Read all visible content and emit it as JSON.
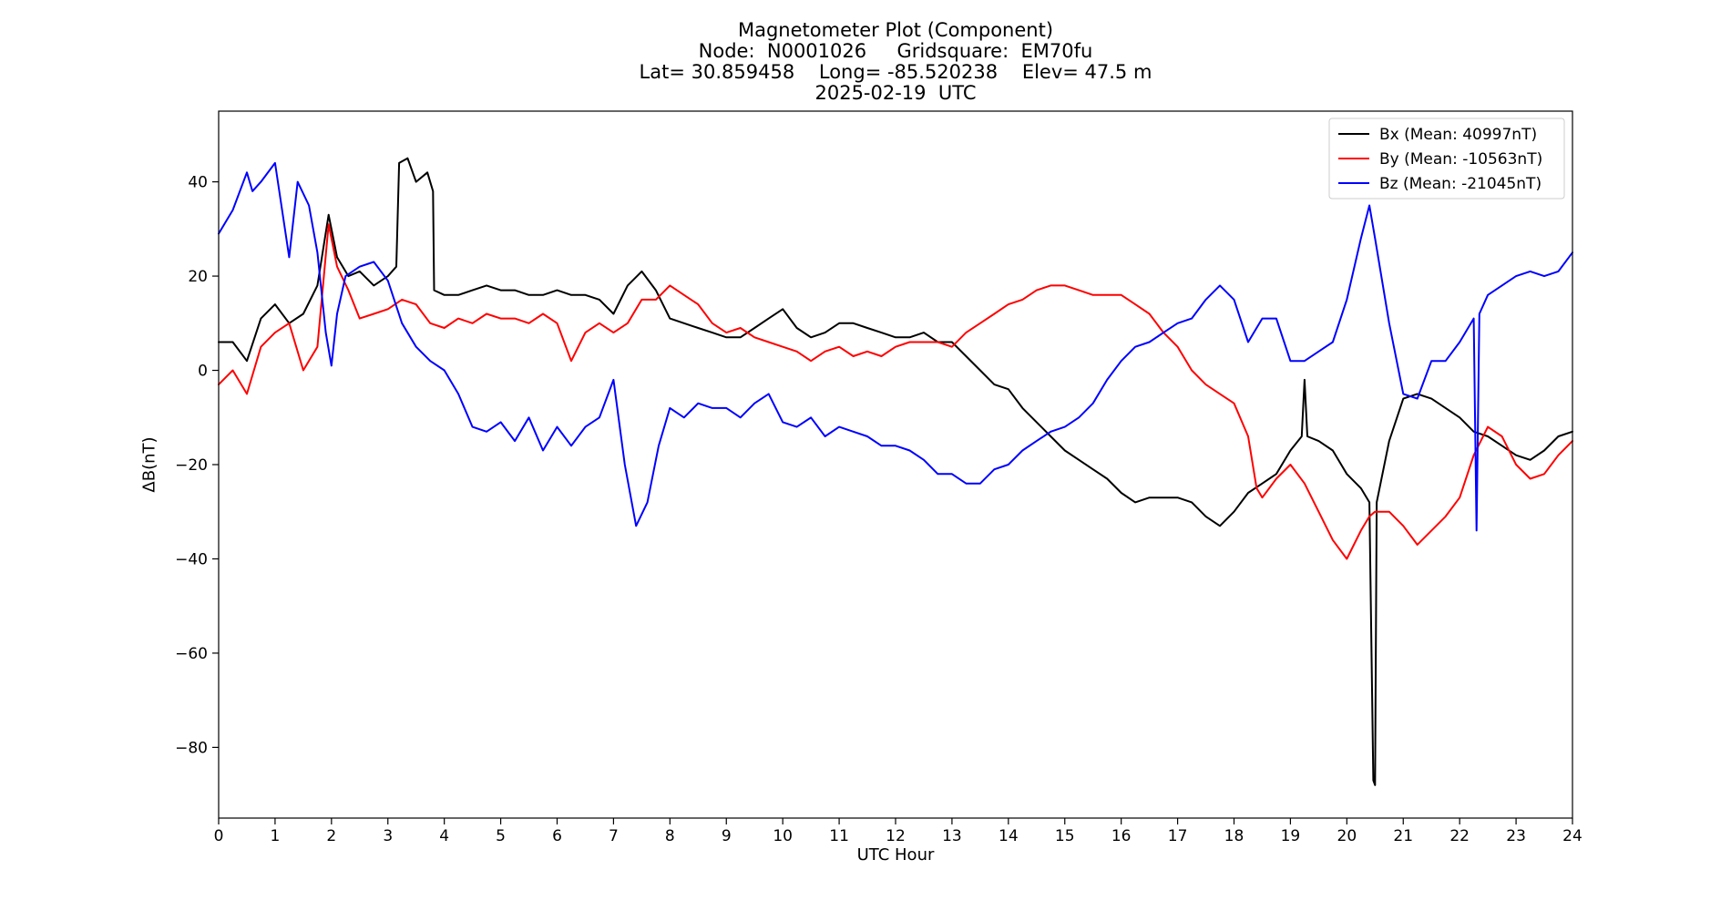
{
  "chart_data": {
    "type": "line",
    "title": [
      "Magnetometer Plot (Component)",
      "Node:  N0001026     Gridsquare:  EM70fu",
      "Lat= 30.859458    Long= -85.520238    Elev= 47.5 m",
      "2025-02-19  UTC"
    ],
    "xlabel": "UTC Hour",
    "ylabel": "ΔB(nT)",
    "xlim": [
      0,
      24
    ],
    "ylim": [
      -95,
      55
    ],
    "x_ticks": [
      0,
      1,
      2,
      3,
      4,
      5,
      6,
      7,
      8,
      9,
      10,
      11,
      12,
      13,
      14,
      15,
      16,
      17,
      18,
      19,
      20,
      21,
      22,
      23,
      24
    ],
    "y_ticks": [
      40,
      20,
      0,
      -20,
      -40,
      -60,
      -80
    ],
    "y_tick_labels": [
      "40",
      "20",
      "0",
      "−20",
      "−40",
      "−60",
      "−80"
    ],
    "grid": false,
    "legend_position": "top-right",
    "series": [
      {
        "name": "Bx (Mean: 40997nT)",
        "color": "#000000",
        "points": [
          [
            0,
            6
          ],
          [
            0.25,
            6
          ],
          [
            0.5,
            2
          ],
          [
            0.75,
            11
          ],
          [
            1,
            14
          ],
          [
            1.25,
            10
          ],
          [
            1.5,
            12
          ],
          [
            1.75,
            18
          ],
          [
            1.95,
            33
          ],
          [
            2.1,
            24
          ],
          [
            2.3,
            20
          ],
          [
            2.5,
            21
          ],
          [
            2.75,
            18
          ],
          [
            3,
            20
          ],
          [
            3.15,
            22
          ],
          [
            3.2,
            44
          ],
          [
            3.35,
            45
          ],
          [
            3.5,
            40
          ],
          [
            3.7,
            42
          ],
          [
            3.8,
            38
          ],
          [
            3.82,
            17
          ],
          [
            4,
            16
          ],
          [
            4.25,
            16
          ],
          [
            4.5,
            17
          ],
          [
            4.75,
            18
          ],
          [
            5,
            17
          ],
          [
            5.25,
            17
          ],
          [
            5.5,
            16
          ],
          [
            5.75,
            16
          ],
          [
            6,
            17
          ],
          [
            6.25,
            16
          ],
          [
            6.5,
            16
          ],
          [
            6.75,
            15
          ],
          [
            7,
            12
          ],
          [
            7.25,
            18
          ],
          [
            7.5,
            21
          ],
          [
            7.75,
            17
          ],
          [
            8,
            11
          ],
          [
            8.25,
            10
          ],
          [
            8.5,
            9
          ],
          [
            8.75,
            8
          ],
          [
            9,
            7
          ],
          [
            9.25,
            7
          ],
          [
            9.5,
            9
          ],
          [
            9.75,
            11
          ],
          [
            10,
            13
          ],
          [
            10.25,
            9
          ],
          [
            10.5,
            7
          ],
          [
            10.75,
            8
          ],
          [
            11,
            10
          ],
          [
            11.25,
            10
          ],
          [
            11.5,
            9
          ],
          [
            11.75,
            8
          ],
          [
            12,
            7
          ],
          [
            12.25,
            7
          ],
          [
            12.5,
            8
          ],
          [
            12.75,
            6
          ],
          [
            13,
            6
          ],
          [
            13.25,
            3
          ],
          [
            13.5,
            0
          ],
          [
            13.75,
            -3
          ],
          [
            14,
            -4
          ],
          [
            14.25,
            -8
          ],
          [
            14.5,
            -11
          ],
          [
            14.75,
            -14
          ],
          [
            15,
            -17
          ],
          [
            15.25,
            -19
          ],
          [
            15.5,
            -21
          ],
          [
            15.75,
            -23
          ],
          [
            16,
            -26
          ],
          [
            16.25,
            -28
          ],
          [
            16.5,
            -27
          ],
          [
            16.75,
            -27
          ],
          [
            17,
            -27
          ],
          [
            17.25,
            -28
          ],
          [
            17.5,
            -31
          ],
          [
            17.75,
            -33
          ],
          [
            18,
            -30
          ],
          [
            18.25,
            -26
          ],
          [
            18.5,
            -24
          ],
          [
            18.75,
            -22
          ],
          [
            19,
            -17
          ],
          [
            19.2,
            -14
          ],
          [
            19.25,
            -2
          ],
          [
            19.3,
            -14
          ],
          [
            19.5,
            -15
          ],
          [
            19.75,
            -17
          ],
          [
            20,
            -22
          ],
          [
            20.25,
            -25
          ],
          [
            20.4,
            -28
          ],
          [
            20.47,
            -87
          ],
          [
            20.5,
            -88
          ],
          [
            20.53,
            -28
          ],
          [
            20.75,
            -15
          ],
          [
            21,
            -6
          ],
          [
            21.25,
            -5
          ],
          [
            21.5,
            -6
          ],
          [
            21.75,
            -8
          ],
          [
            22,
            -10
          ],
          [
            22.25,
            -13
          ],
          [
            22.5,
            -14
          ],
          [
            22.75,
            -16
          ],
          [
            23,
            -18
          ],
          [
            23.25,
            -19
          ],
          [
            23.5,
            -17
          ],
          [
            23.75,
            -14
          ],
          [
            24,
            -13
          ]
        ]
      },
      {
        "name": "By (Mean: -10563nT)",
        "color": "#ff0000",
        "points": [
          [
            0,
            -3
          ],
          [
            0.25,
            0
          ],
          [
            0.5,
            -5
          ],
          [
            0.75,
            5
          ],
          [
            1,
            8
          ],
          [
            1.25,
            10
          ],
          [
            1.5,
            0
          ],
          [
            1.75,
            5
          ],
          [
            1.95,
            31
          ],
          [
            2.1,
            22
          ],
          [
            2.3,
            17
          ],
          [
            2.5,
            11
          ],
          [
            2.75,
            12
          ],
          [
            3,
            13
          ],
          [
            3.25,
            15
          ],
          [
            3.5,
            14
          ],
          [
            3.75,
            10
          ],
          [
            4,
            9
          ],
          [
            4.25,
            11
          ],
          [
            4.5,
            10
          ],
          [
            4.75,
            12
          ],
          [
            5,
            11
          ],
          [
            5.25,
            11
          ],
          [
            5.5,
            10
          ],
          [
            5.75,
            12
          ],
          [
            6,
            10
          ],
          [
            6.25,
            2
          ],
          [
            6.5,
            8
          ],
          [
            6.75,
            10
          ],
          [
            7,
            8
          ],
          [
            7.25,
            10
          ],
          [
            7.5,
            15
          ],
          [
            7.75,
            15
          ],
          [
            8,
            18
          ],
          [
            8.25,
            16
          ],
          [
            8.5,
            14
          ],
          [
            8.75,
            10
          ],
          [
            9,
            8
          ],
          [
            9.25,
            9
          ],
          [
            9.5,
            7
          ],
          [
            9.75,
            6
          ],
          [
            10,
            5
          ],
          [
            10.25,
            4
          ],
          [
            10.5,
            2
          ],
          [
            10.75,
            4
          ],
          [
            11,
            5
          ],
          [
            11.25,
            3
          ],
          [
            11.5,
            4
          ],
          [
            11.75,
            3
          ],
          [
            12,
            5
          ],
          [
            12.25,
            6
          ],
          [
            12.5,
            6
          ],
          [
            12.75,
            6
          ],
          [
            13,
            5
          ],
          [
            13.25,
            8
          ],
          [
            13.5,
            10
          ],
          [
            13.75,
            12
          ],
          [
            14,
            14
          ],
          [
            14.25,
            15
          ],
          [
            14.5,
            17
          ],
          [
            14.75,
            18
          ],
          [
            15,
            18
          ],
          [
            15.25,
            17
          ],
          [
            15.5,
            16
          ],
          [
            15.75,
            16
          ],
          [
            16,
            16
          ],
          [
            16.25,
            14
          ],
          [
            16.5,
            12
          ],
          [
            16.75,
            8
          ],
          [
            17,
            5
          ],
          [
            17.25,
            0
          ],
          [
            17.5,
            -3
          ],
          [
            17.75,
            -5
          ],
          [
            18,
            -7
          ],
          [
            18.25,
            -14
          ],
          [
            18.4,
            -25
          ],
          [
            18.5,
            -27
          ],
          [
            18.75,
            -23
          ],
          [
            19,
            -20
          ],
          [
            19.25,
            -24
          ],
          [
            19.5,
            -30
          ],
          [
            19.75,
            -36
          ],
          [
            20,
            -40
          ],
          [
            20.25,
            -34
          ],
          [
            20.4,
            -31
          ],
          [
            20.5,
            -30
          ],
          [
            20.75,
            -30
          ],
          [
            21,
            -33
          ],
          [
            21.25,
            -37
          ],
          [
            21.5,
            -34
          ],
          [
            21.75,
            -31
          ],
          [
            22,
            -27
          ],
          [
            22.25,
            -18
          ],
          [
            22.5,
            -12
          ],
          [
            22.75,
            -14
          ],
          [
            23,
            -20
          ],
          [
            23.25,
            -23
          ],
          [
            23.5,
            -22
          ],
          [
            23.75,
            -18
          ],
          [
            24,
            -15
          ]
        ]
      },
      {
        "name": "Bz (Mean: -21045nT)",
        "color": "#0000ff",
        "points": [
          [
            0,
            29
          ],
          [
            0.25,
            34
          ],
          [
            0.5,
            42
          ],
          [
            0.6,
            38
          ],
          [
            0.75,
            40
          ],
          [
            1,
            44
          ],
          [
            1.15,
            32
          ],
          [
            1.25,
            24
          ],
          [
            1.4,
            40
          ],
          [
            1.6,
            35
          ],
          [
            1.75,
            25
          ],
          [
            1.9,
            8
          ],
          [
            2,
            1
          ],
          [
            2.1,
            12
          ],
          [
            2.25,
            20
          ],
          [
            2.5,
            22
          ],
          [
            2.75,
            23
          ],
          [
            3,
            19
          ],
          [
            3.25,
            10
          ],
          [
            3.5,
            5
          ],
          [
            3.75,
            2
          ],
          [
            4,
            0
          ],
          [
            4.25,
            -5
          ],
          [
            4.5,
            -12
          ],
          [
            4.75,
            -13
          ],
          [
            5,
            -11
          ],
          [
            5.25,
            -15
          ],
          [
            5.5,
            -10
          ],
          [
            5.75,
            -17
          ],
          [
            6,
            -12
          ],
          [
            6.25,
            -16
          ],
          [
            6.5,
            -12
          ],
          [
            6.75,
            -10
          ],
          [
            7,
            -2
          ],
          [
            7.2,
            -20
          ],
          [
            7.4,
            -33
          ],
          [
            7.6,
            -28
          ],
          [
            7.8,
            -16
          ],
          [
            8,
            -8
          ],
          [
            8.25,
            -10
          ],
          [
            8.5,
            -7
          ],
          [
            8.75,
            -8
          ],
          [
            9,
            -8
          ],
          [
            9.25,
            -10
          ],
          [
            9.5,
            -7
          ],
          [
            9.75,
            -5
          ],
          [
            10,
            -11
          ],
          [
            10.25,
            -12
          ],
          [
            10.5,
            -10
          ],
          [
            10.75,
            -14
          ],
          [
            11,
            -12
          ],
          [
            11.25,
            -13
          ],
          [
            11.5,
            -14
          ],
          [
            11.75,
            -16
          ],
          [
            12,
            -16
          ],
          [
            12.25,
            -17
          ],
          [
            12.5,
            -19
          ],
          [
            12.75,
            -22
          ],
          [
            13,
            -22
          ],
          [
            13.25,
            -24
          ],
          [
            13.5,
            -24
          ],
          [
            13.75,
            -21
          ],
          [
            14,
            -20
          ],
          [
            14.25,
            -17
          ],
          [
            14.5,
            -15
          ],
          [
            14.75,
            -13
          ],
          [
            15,
            -12
          ],
          [
            15.25,
            -10
          ],
          [
            15.5,
            -7
          ],
          [
            15.75,
            -2
          ],
          [
            16,
            2
          ],
          [
            16.25,
            5
          ],
          [
            16.5,
            6
          ],
          [
            16.75,
            8
          ],
          [
            17,
            10
          ],
          [
            17.25,
            11
          ],
          [
            17.5,
            15
          ],
          [
            17.75,
            18
          ],
          [
            18,
            15
          ],
          [
            18.25,
            6
          ],
          [
            18.5,
            11
          ],
          [
            18.75,
            11
          ],
          [
            19,
            2
          ],
          [
            19.25,
            2
          ],
          [
            19.5,
            4
          ],
          [
            19.75,
            6
          ],
          [
            20,
            15
          ],
          [
            20.25,
            28
          ],
          [
            20.4,
            35
          ],
          [
            20.5,
            28
          ],
          [
            20.75,
            10
          ],
          [
            21,
            -5
          ],
          [
            21.25,
            -6
          ],
          [
            21.5,
            2
          ],
          [
            21.75,
            2
          ],
          [
            22,
            6
          ],
          [
            22.25,
            11
          ],
          [
            22.3,
            -34
          ],
          [
            22.35,
            12
          ],
          [
            22.5,
            16
          ],
          [
            22.75,
            18
          ],
          [
            23,
            20
          ],
          [
            23.25,
            21
          ],
          [
            23.5,
            20
          ],
          [
            23.75,
            21
          ],
          [
            24,
            25
          ]
        ]
      }
    ]
  }
}
